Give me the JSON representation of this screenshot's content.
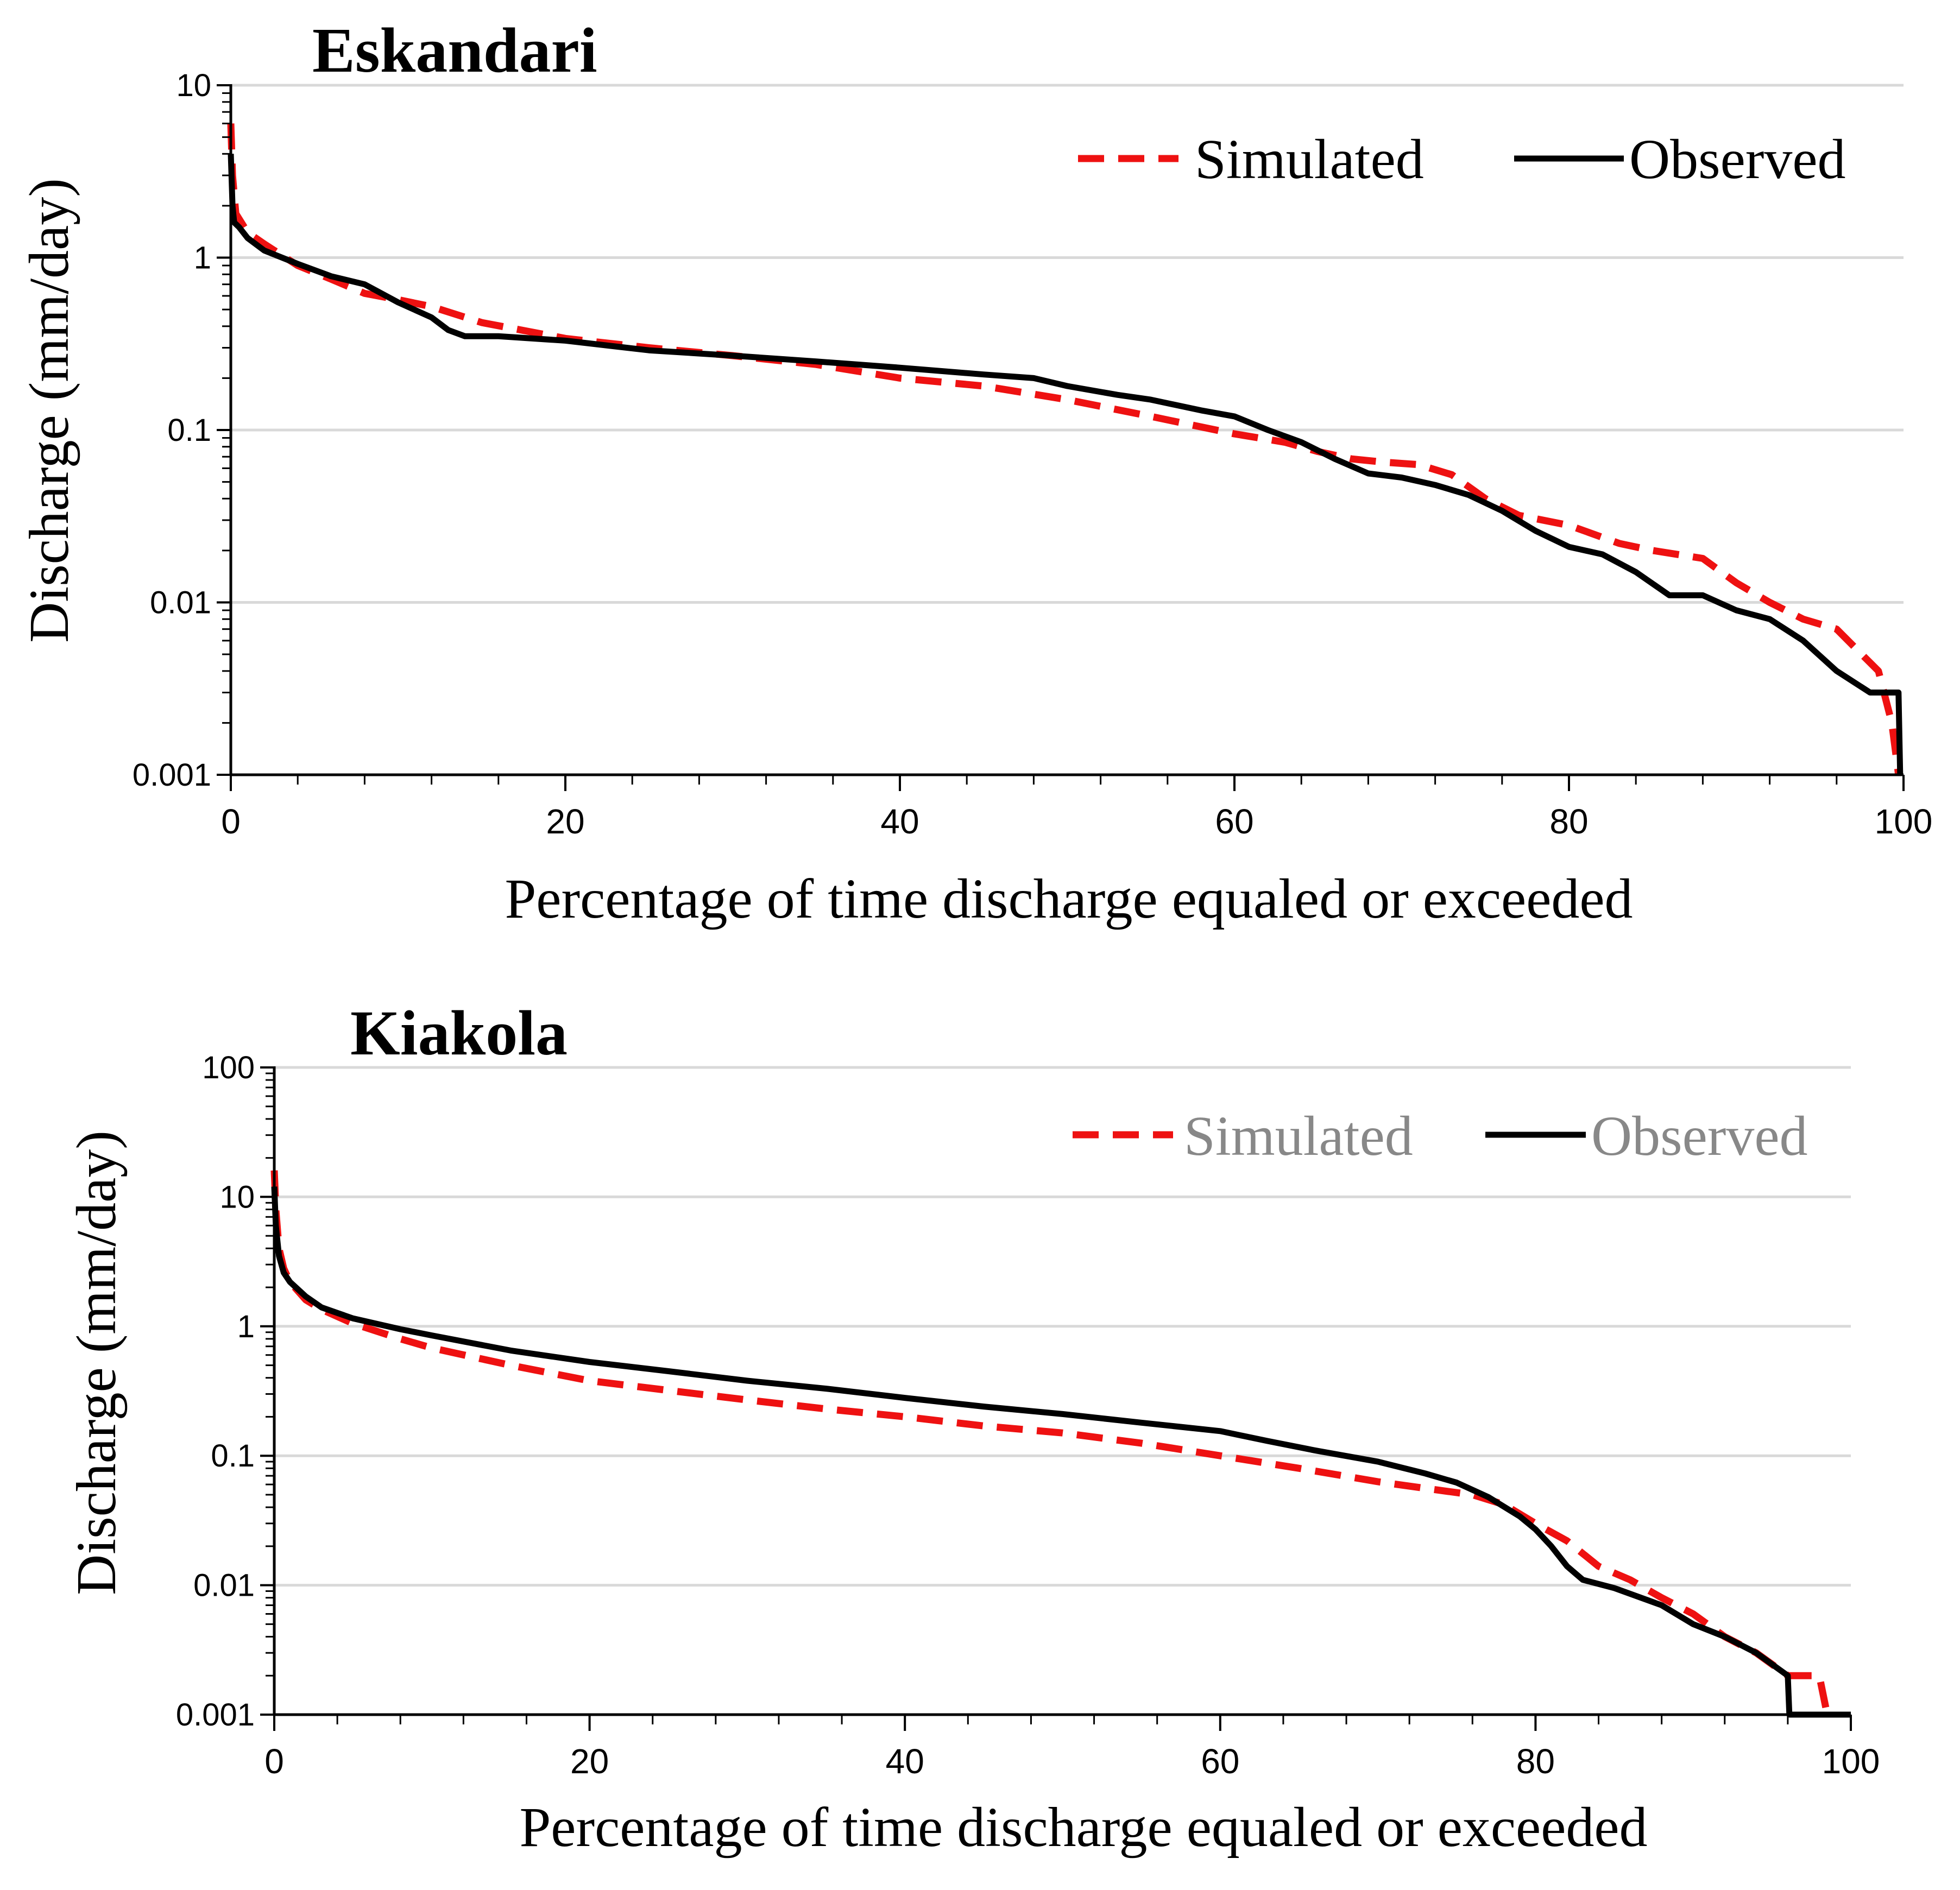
{
  "chart_data": [
    {
      "type": "line",
      "title": "Eskandari",
      "xlabel": "Percentage of time discharge equaled or exceeded",
      "ylabel": "Discharge (mm/day)",
      "xlim": [
        0,
        100
      ],
      "ylim": [
        0.001,
        10
      ],
      "y_scale": "log",
      "grid": "horizontal",
      "legend_position": "top-right",
      "legend_text_color": "#000000",
      "x_ticks": [
        "0",
        "20",
        "40",
        "60",
        "80",
        "100"
      ],
      "y_ticks": [
        "0.001",
        "0.01",
        "0.1",
        "1",
        "10"
      ],
      "series": [
        {
          "name": "Simulated",
          "color": "#ee1111",
          "style": "dashed",
          "x": [
            0,
            0.1,
            0.3,
            1,
            2,
            4,
            6,
            8,
            10,
            12,
            15,
            20,
            25,
            30,
            35,
            40,
            45,
            50,
            55,
            60,
            63,
            65,
            67,
            69,
            71,
            73,
            75,
            77,
            80,
            83,
            85,
            88,
            90,
            92,
            94,
            96,
            97.5,
            98.5,
            99.3,
            99.7
          ],
          "y": [
            6,
            3,
            1.8,
            1.4,
            1.2,
            0.9,
            0.75,
            0.62,
            0.57,
            0.52,
            0.42,
            0.34,
            0.3,
            0.27,
            0.24,
            0.2,
            0.18,
            0.15,
            0.12,
            0.095,
            0.085,
            0.075,
            0.068,
            0.065,
            0.063,
            0.055,
            0.04,
            0.032,
            0.028,
            0.022,
            0.02,
            0.018,
            0.013,
            0.01,
            0.008,
            0.007,
            0.005,
            0.004,
            0.002,
            0.001
          ]
        },
        {
          "name": "Observed",
          "color": "#000000",
          "style": "solid",
          "x": [
            0,
            0.1,
            0.2,
            0.5,
            1,
            2,
            4,
            6,
            8,
            10,
            12,
            13,
            14,
            16,
            20,
            25,
            30,
            35,
            40,
            45,
            48,
            50,
            53,
            55,
            58,
            60,
            62,
            64,
            66,
            68,
            70,
            72,
            74,
            76,
            78,
            80,
            82,
            84,
            86,
            88,
            90,
            92,
            94,
            96,
            98,
            99.7,
            99.8
          ],
          "y": [
            4,
            2,
            1.6,
            1.5,
            1.3,
            1.1,
            0.92,
            0.78,
            0.7,
            0.55,
            0.45,
            0.38,
            0.35,
            0.35,
            0.33,
            0.29,
            0.27,
            0.25,
            0.23,
            0.21,
            0.2,
            0.18,
            0.16,
            0.15,
            0.13,
            0.12,
            0.1,
            0.085,
            0.068,
            0.056,
            0.053,
            0.048,
            0.042,
            0.034,
            0.026,
            0.021,
            0.019,
            0.015,
            0.011,
            0.011,
            0.009,
            0.008,
            0.006,
            0.004,
            0.003,
            0.003,
            0.001
          ]
        }
      ]
    },
    {
      "type": "line",
      "title": "Kiakola",
      "xlabel": "Percentage of time discharge equaled or exceeded",
      "ylabel": "Discharge (mm/day)",
      "xlim": [
        0,
        100
      ],
      "ylim": [
        0.001,
        100
      ],
      "y_scale": "log",
      "grid": "horizontal",
      "legend_position": "top-right",
      "legend_text_color": "#888888",
      "x_ticks": [
        "0",
        "20",
        "40",
        "60",
        "80",
        "100"
      ],
      "y_ticks": [
        "0.001",
        "0.01",
        "0.1",
        "1",
        "10",
        "100"
      ],
      "series": [
        {
          "name": "Simulated",
          "color": "#ee1111",
          "style": "dashed",
          "x": [
            0,
            0.1,
            0.3,
            0.6,
            1,
            2,
            3,
            5,
            8,
            10,
            15,
            20,
            25,
            30,
            35,
            40,
            45,
            50,
            55,
            60,
            65,
            70,
            73,
            76,
            78,
            80,
            82,
            84,
            86,
            88,
            90,
            92,
            94,
            96,
            98,
            98.5
          ],
          "y": [
            16,
            8,
            4,
            2.8,
            2.2,
            1.6,
            1.35,
            1.05,
            0.8,
            0.68,
            0.5,
            0.38,
            0.32,
            0.27,
            0.23,
            0.2,
            0.17,
            0.15,
            0.125,
            0.1,
            0.08,
            0.063,
            0.056,
            0.05,
            0.042,
            0.03,
            0.022,
            0.014,
            0.011,
            0.008,
            0.006,
            0.004,
            0.003,
            0.002,
            0.002,
            0.001
          ]
        },
        {
          "name": "Observed",
          "color": "#000000",
          "style": "solid",
          "x": [
            0,
            0.1,
            0.3,
            0.6,
            1,
            2,
            3,
            5,
            8,
            10,
            15,
            20,
            25,
            30,
            35,
            40,
            45,
            50,
            55,
            60,
            63,
            66,
            70,
            73,
            75,
            77,
            79,
            80,
            81,
            82,
            83,
            85,
            88,
            90,
            92,
            94,
            96,
            96.1,
            100
          ],
          "y": [
            12,
            6,
            3.5,
            2.6,
            2.2,
            1.7,
            1.4,
            1.15,
            0.95,
            0.85,
            0.65,
            0.53,
            0.45,
            0.38,
            0.33,
            0.28,
            0.24,
            0.21,
            0.18,
            0.155,
            0.13,
            0.11,
            0.09,
            0.073,
            0.062,
            0.048,
            0.034,
            0.027,
            0.02,
            0.014,
            0.011,
            0.0095,
            0.007,
            0.005,
            0.004,
            0.003,
            0.002,
            0.001,
            0.001
          ]
        }
      ]
    }
  ]
}
